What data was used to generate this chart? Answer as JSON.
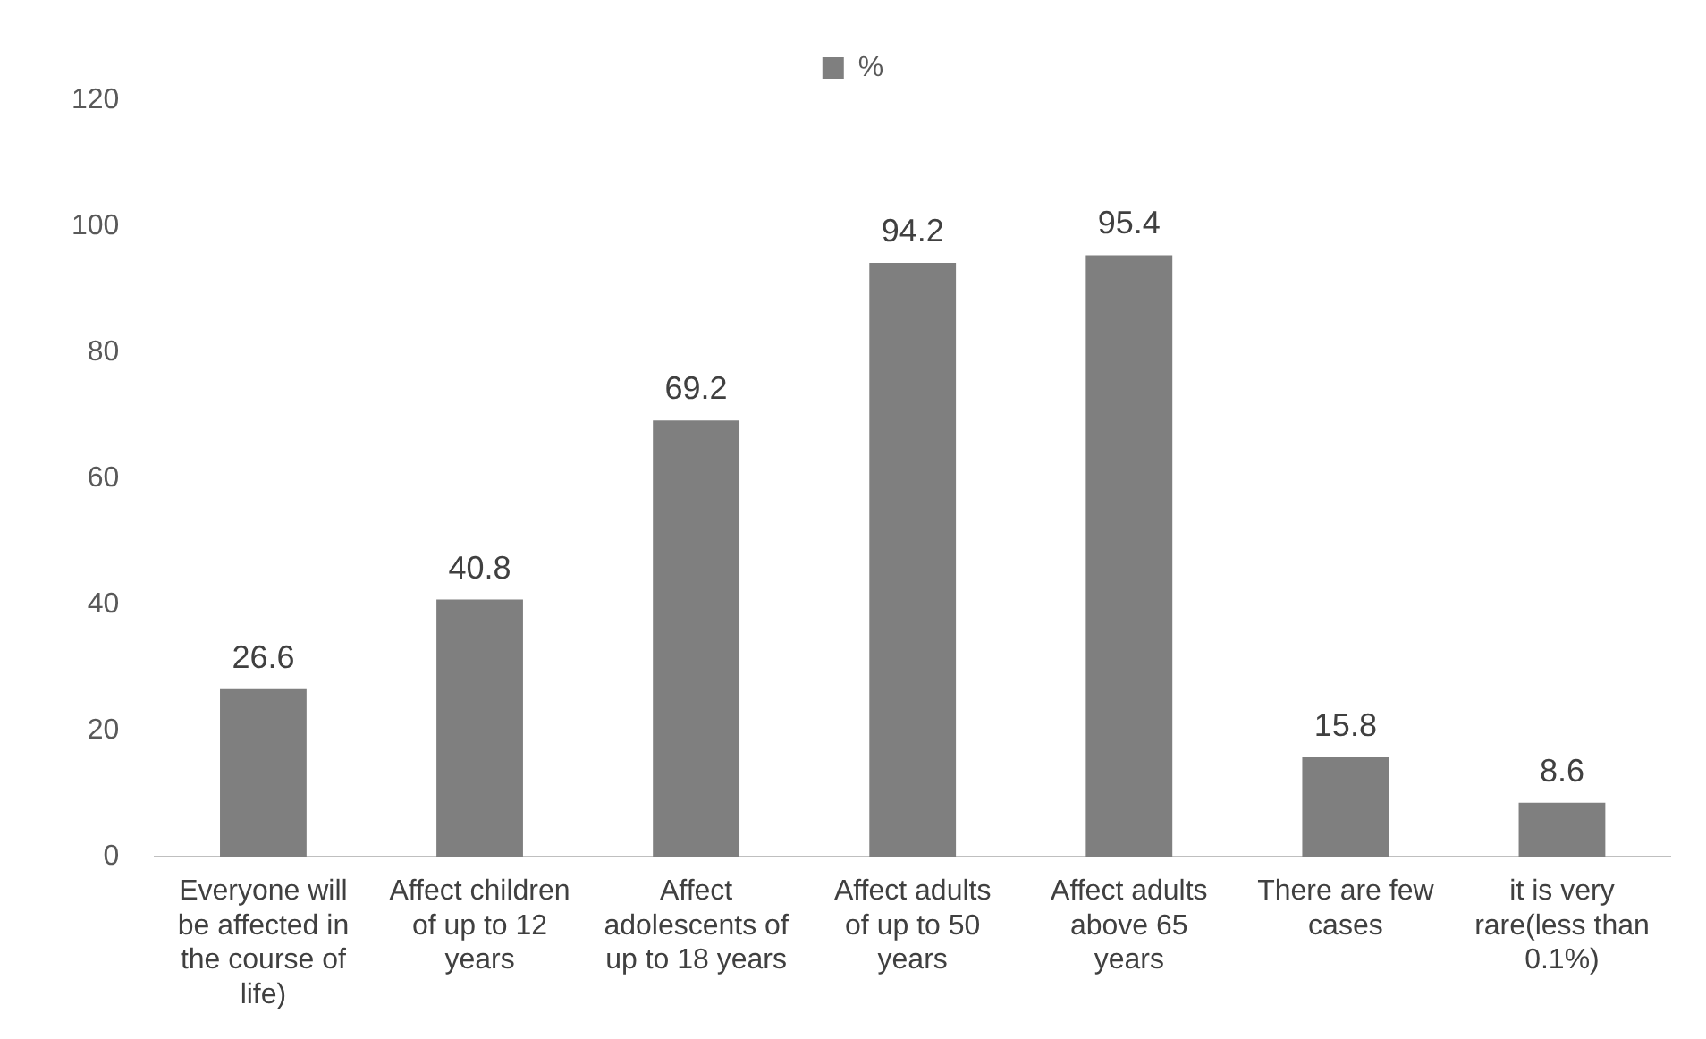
{
  "chart_data": {
    "type": "bar",
    "categories": [
      "Everyone will be affected in the course of life)",
      "Affect children of up to 12 years",
      "Affect adolescents of up to 18 years",
      "Affect adults of up to 50 years",
      "Affect adults above 65 years",
      "There are few cases",
      "it is very rare(less than 0.1%)"
    ],
    "series": [
      {
        "name": "%",
        "color": "#7f7f7f",
        "values": [
          26.6,
          40.8,
          69.2,
          94.2,
          95.4,
          15.8,
          8.6
        ]
      }
    ],
    "ylim": [
      0,
      120
    ],
    "yticks": [
      0,
      20,
      40,
      60,
      80,
      100,
      120
    ],
    "grid": false,
    "legend": "top",
    "data_labels": true
  }
}
